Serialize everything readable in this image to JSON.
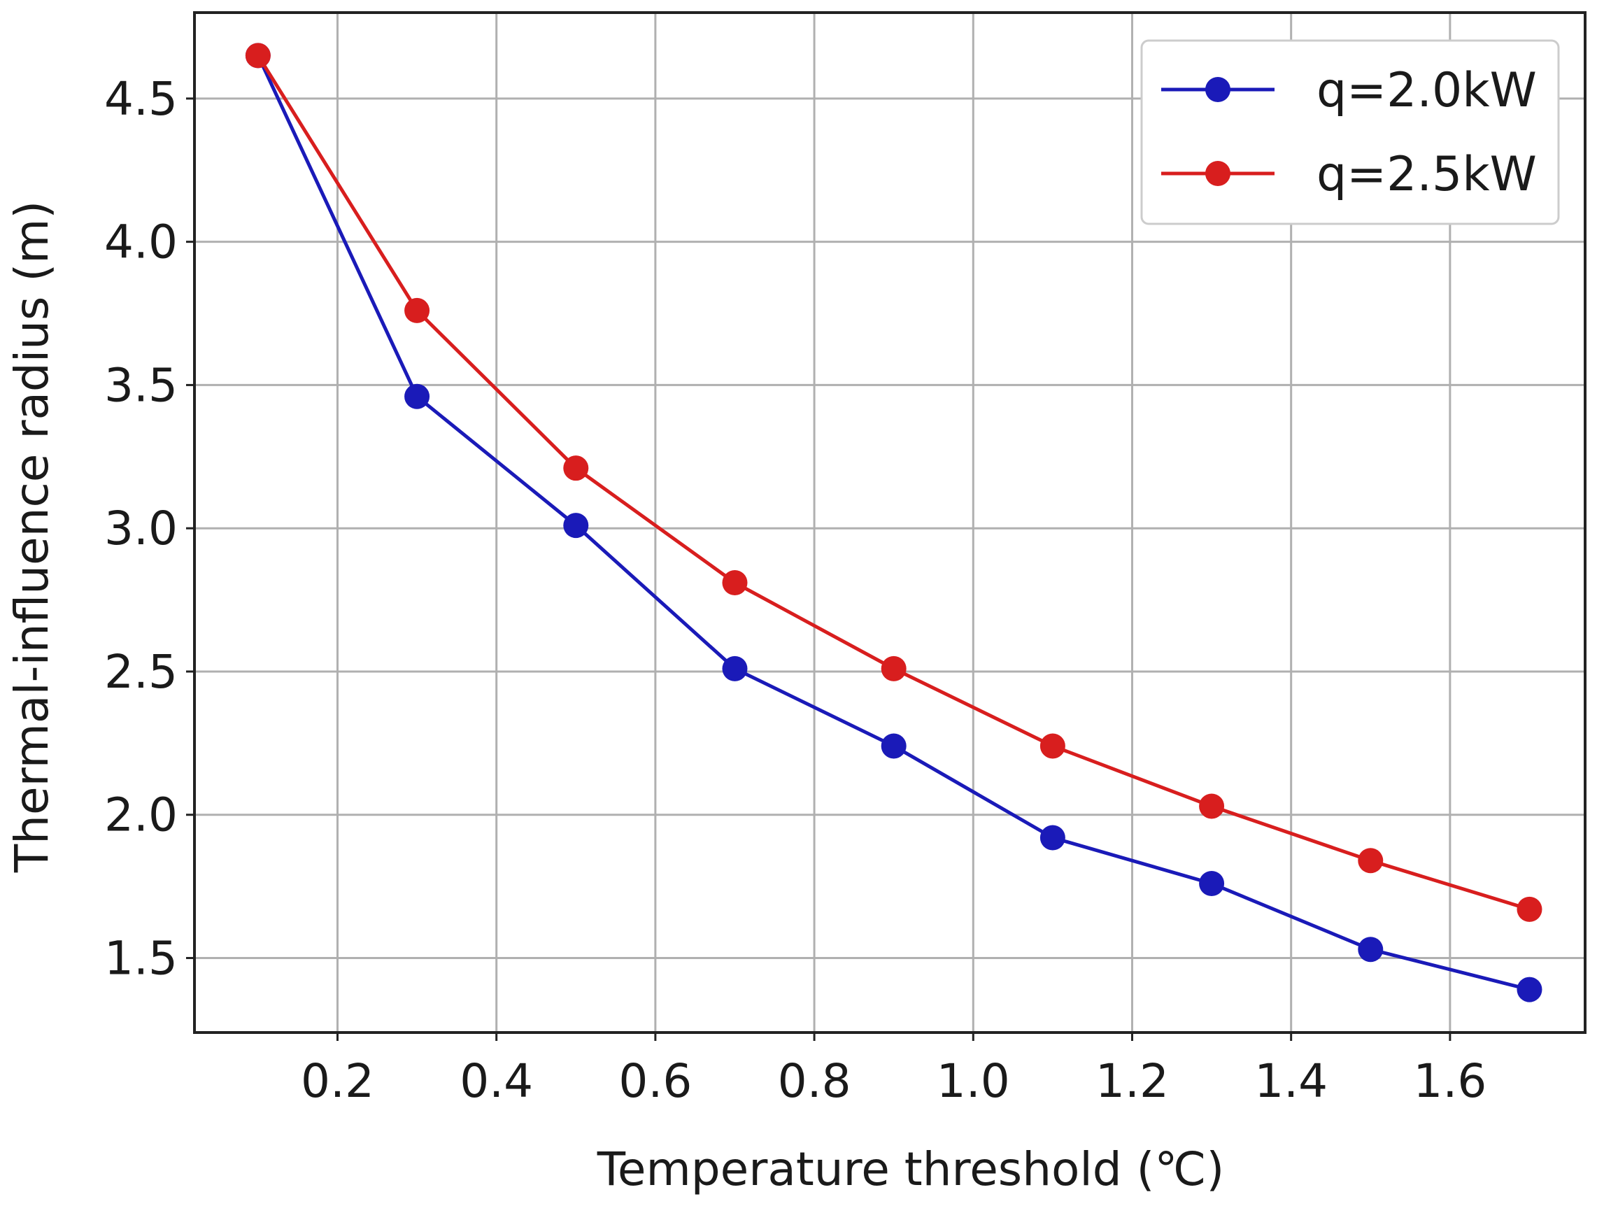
{
  "chart_data": {
    "type": "line",
    "title": "",
    "xlabel": "Temperature threshold (℃)",
    "ylabel": "Thermal-influence radius (m)",
    "xlim": [
      0.02,
      1.77
    ],
    "ylim": [
      1.24,
      4.8
    ],
    "xticks": [
      0.2,
      0.4,
      0.6,
      0.8,
      1.0,
      1.2,
      1.4,
      1.6
    ],
    "xtick_labels": [
      "0.2",
      "0.4",
      "0.6",
      "0.8",
      "1.0",
      "1.2",
      "1.4",
      "1.6"
    ],
    "yticks": [
      1.5,
      2.0,
      2.5,
      3.0,
      3.5,
      4.0,
      4.5
    ],
    "ytick_labels": [
      "1.5",
      "2.0",
      "2.5",
      "3.0",
      "3.5",
      "4.0",
      "4.5"
    ],
    "grid": true,
    "legend_position": "top-right",
    "x": [
      0.1,
      0.3,
      0.5,
      0.7,
      0.9,
      1.1,
      1.3,
      1.5,
      1.7
    ],
    "series": [
      {
        "name": "q=2.0kW",
        "color": "#1a1ab8",
        "values": [
          4.65,
          3.46,
          3.01,
          2.51,
          2.24,
          1.92,
          1.76,
          1.53,
          1.39
        ]
      },
      {
        "name": "q=2.5kW",
        "color": "#d81e1e",
        "values": [
          4.65,
          3.76,
          3.21,
          2.81,
          2.51,
          2.24,
          2.03,
          1.84,
          1.67
        ]
      }
    ]
  }
}
